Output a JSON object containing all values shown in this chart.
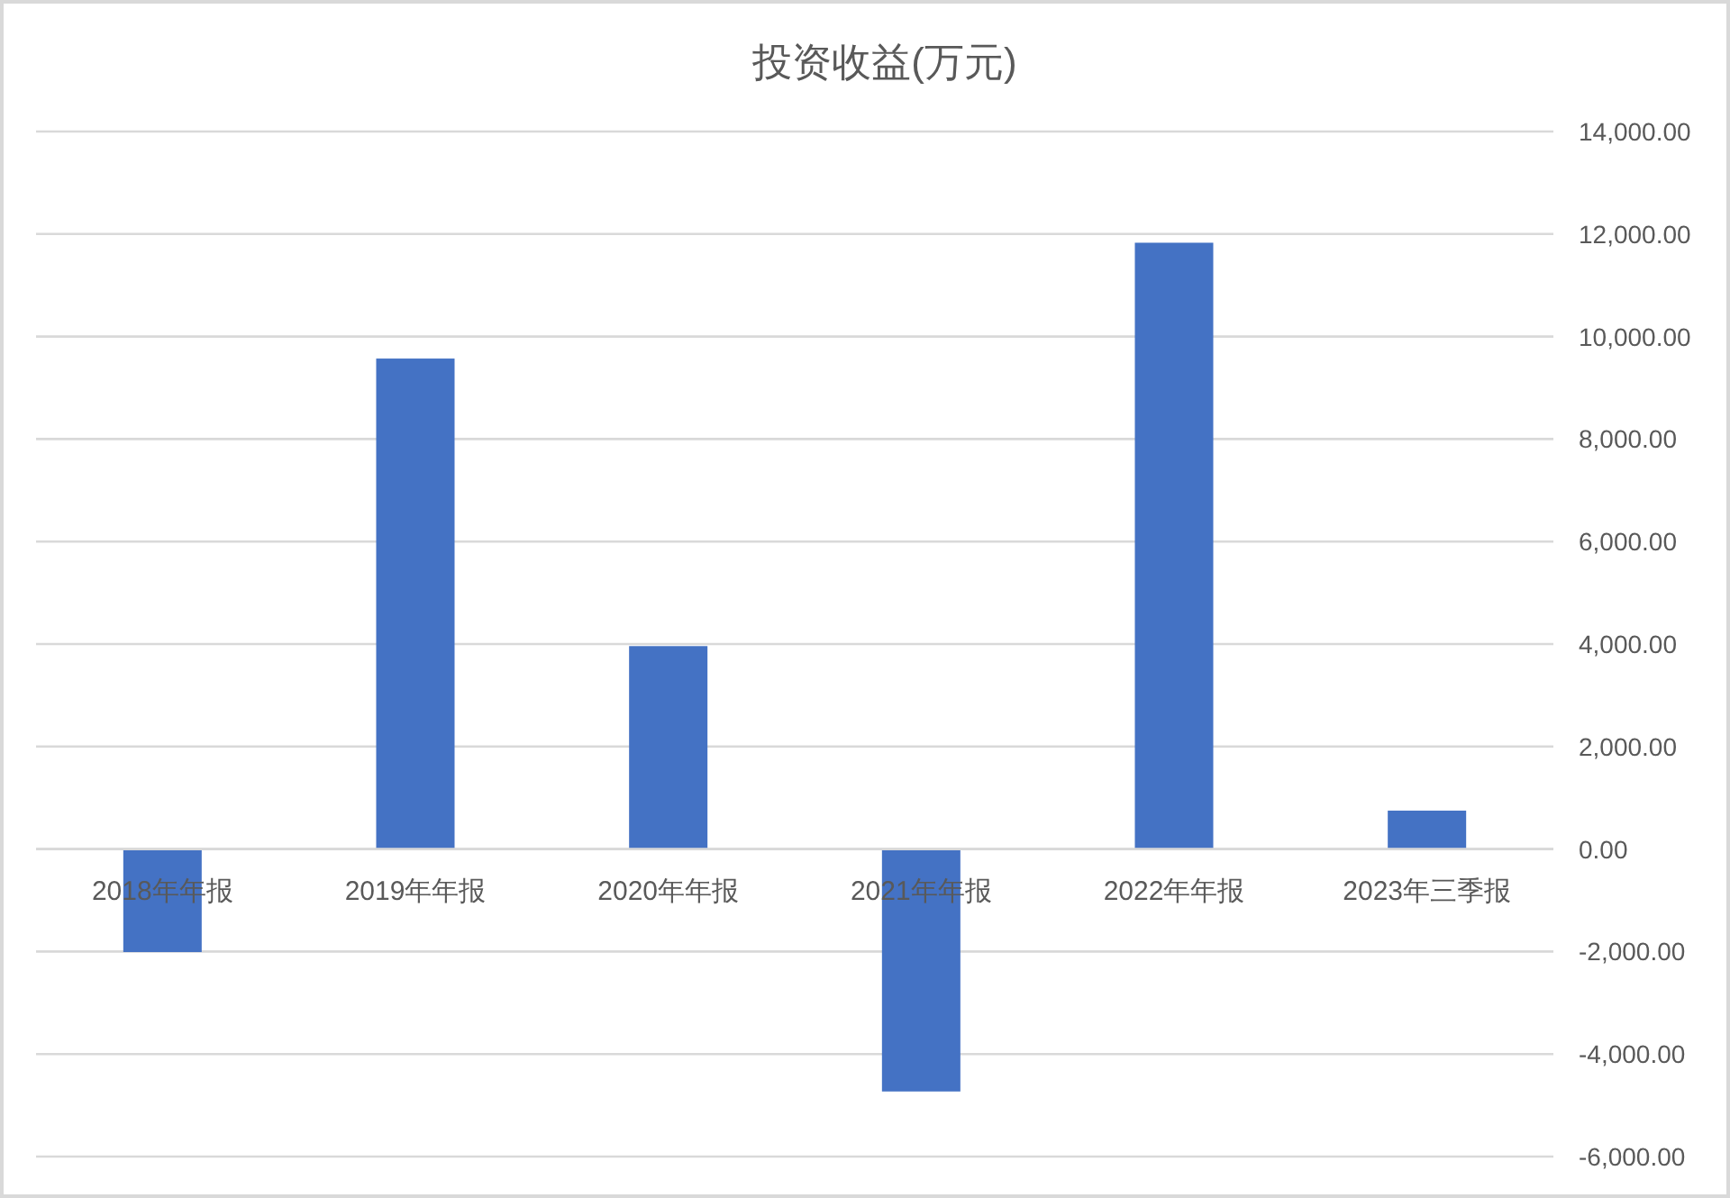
{
  "chart_data": {
    "type": "bar",
    "title": "投资收益(万元)",
    "categories": [
      "2018年年报",
      "2019年年报",
      "2020年年报",
      "2021年年报",
      "2022年年报",
      "2023年三季报"
    ],
    "values": [
      -2010,
      9570,
      3960,
      -4730,
      11830,
      750
    ],
    "color": "#4472c4",
    "ylim": [
      -6000,
      14000
    ],
    "yticks": [
      {
        "value": -6000,
        "label": "-6,000.00"
      },
      {
        "value": -4000,
        "label": "-4,000.00"
      },
      {
        "value": -2000,
        "label": "-2,000.00"
      },
      {
        "value": 0,
        "label": "0.00"
      },
      {
        "value": 2000,
        "label": "2,000.00"
      },
      {
        "value": 4000,
        "label": "4,000.00"
      },
      {
        "value": 6000,
        "label": "6,000.00"
      },
      {
        "value": 8000,
        "label": "8,000.00"
      },
      {
        "value": 10000,
        "label": "10,000.00"
      },
      {
        "value": 12000,
        "label": "12,000.00"
      },
      {
        "value": 14000,
        "label": "14,000.00"
      }
    ],
    "grid": "y"
  }
}
